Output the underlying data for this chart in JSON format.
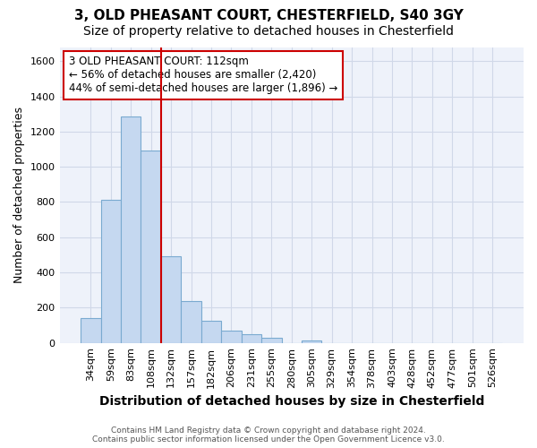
{
  "title_line1": "3, OLD PHEASANT COURT, CHESTERFIELD, S40 3GY",
  "title_line2": "Size of property relative to detached houses in Chesterfield",
  "xlabel": "Distribution of detached houses by size in Chesterfield",
  "ylabel": "Number of detached properties",
  "categories": [
    "34sqm",
    "59sqm",
    "83sqm",
    "108sqm",
    "132sqm",
    "157sqm",
    "182sqm",
    "206sqm",
    "231sqm",
    "255sqm",
    "280sqm",
    "305sqm",
    "329sqm",
    "354sqm",
    "378sqm",
    "403sqm",
    "428sqm",
    "452sqm",
    "477sqm",
    "501sqm",
    "526sqm"
  ],
  "values": [
    140,
    815,
    1285,
    1090,
    490,
    240,
    128,
    70,
    48,
    28,
    0,
    15,
    0,
    0,
    0,
    0,
    0,
    0,
    0,
    0,
    0
  ],
  "bar_color": "#c5d8f0",
  "bar_edge_color": "#7aaad0",
  "grid_color": "#d0d8e8",
  "background_color": "#eef2fa",
  "property_label": "3 OLD PHEASANT COURT: 112sqm",
  "annotation_line1": "← 56% of detached houses are smaller (2,420)",
  "annotation_line2": "44% of semi-detached houses are larger (1,896) →",
  "box_color": "#cc0000",
  "ylim": [
    0,
    1680
  ],
  "yticks": [
    0,
    200,
    400,
    600,
    800,
    1000,
    1200,
    1400,
    1600
  ],
  "prop_line_index": 3.5,
  "footer_line1": "Contains HM Land Registry data © Crown copyright and database right 2024.",
  "footer_line2": "Contains public sector information licensed under the Open Government Licence v3.0.",
  "title_fontsize": 11,
  "subtitle_fontsize": 10,
  "ylabel_fontsize": 9,
  "xlabel_fontsize": 10
}
